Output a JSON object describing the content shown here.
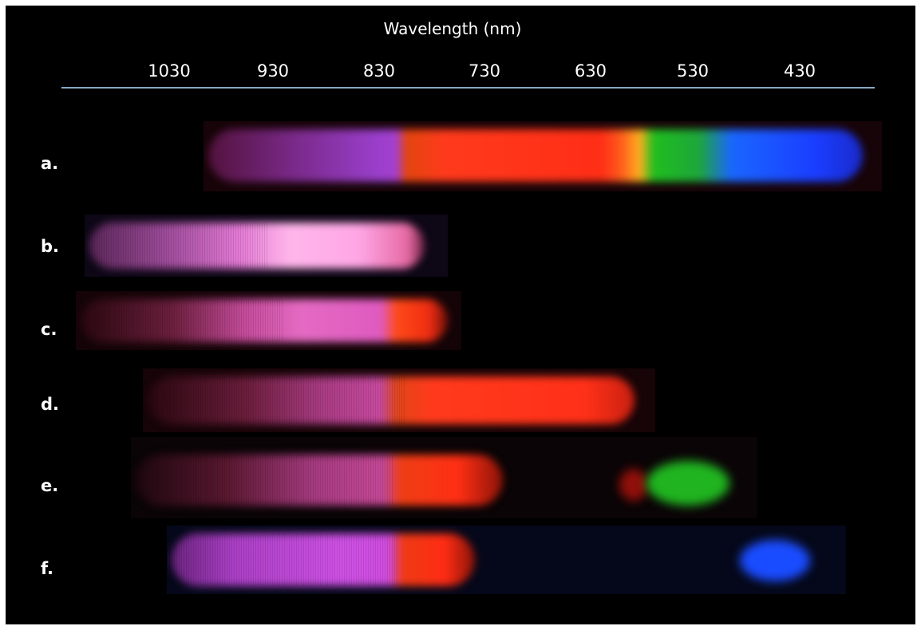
{
  "figure": {
    "axis_title": "Wavelength (nm)",
    "ticks": [
      "1030",
      "930",
      "830",
      "730",
      "630",
      "530",
      "430"
    ],
    "rows": [
      {
        "label": "a."
      },
      {
        "label": "b."
      },
      {
        "label": "c."
      },
      {
        "label": "d."
      },
      {
        "label": "e."
      },
      {
        "label": "f."
      }
    ]
  }
}
